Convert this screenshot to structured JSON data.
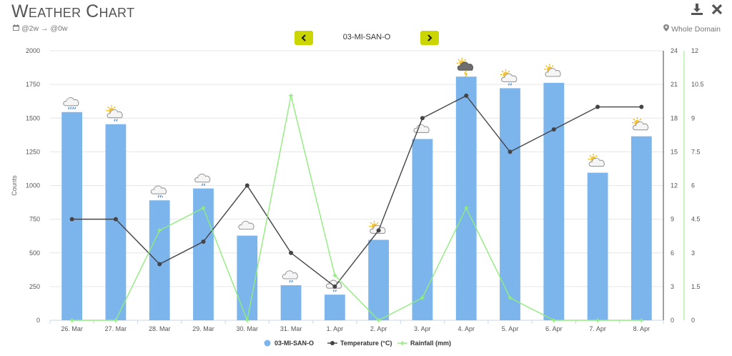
{
  "header": {
    "title_first_letter_1": "W",
    "title_rest_1": "EATHER",
    "title_first_letter_2": "C",
    "title_rest_2": "HART",
    "date_range": "@2w → @0w",
    "domain_label": "Whole Domain"
  },
  "nav": {
    "station": "03-MI-SAN-O",
    "prev_symbol": "‹",
    "next_symbol": "›"
  },
  "icons": {
    "download": "download-icon",
    "close": "close-icon",
    "calendar": "calendar-icon",
    "location": "map-marker-icon"
  },
  "colors": {
    "bars": "#7cb5ec",
    "temperature": "#434348",
    "rainfall": "#90ed7d",
    "nav_button": "#cbd600"
  },
  "chart_data": {
    "type": "bar",
    "categories": [
      "26. Mar",
      "27. Mar",
      "28. Mar",
      "29. Mar",
      "30. Mar",
      "31. Mar",
      "1. Apr",
      "2. Apr",
      "3. Apr",
      "4. Apr",
      "5. Apr",
      "6. Apr",
      "7. Apr",
      "8. Apr"
    ],
    "ylabel": "Counts",
    "ylim": [
      0,
      2000
    ],
    "yticks": [
      "0",
      "250",
      "500",
      "750",
      "1000",
      "1250",
      "1500",
      "1750",
      "2000"
    ],
    "y2lim": [
      0,
      24
    ],
    "y2ticks": [
      "0",
      "3",
      "6",
      "9",
      "12",
      "15",
      "18",
      "21",
      "24"
    ],
    "y3lim": [
      0,
      12
    ],
    "y3ticks": [
      "0",
      "1.5",
      "3",
      "4.5",
      "6",
      "7.5",
      "9",
      "10.5",
      "12"
    ],
    "grid": true,
    "legend_position": "bottom-center",
    "series": [
      {
        "name": "03-MI-SAN-O",
        "kind": "bar",
        "axis": "left",
        "values": [
          1545,
          1455,
          890,
          978,
          628,
          260,
          190,
          597,
          1345,
          1808,
          1722,
          1762,
          1095,
          1365
        ]
      },
      {
        "name": "Temperature (°C)",
        "kind": "line",
        "axis": "right1",
        "values": [
          9,
          9,
          5,
          7,
          12,
          6,
          3,
          8,
          18,
          20,
          15,
          17,
          19,
          19
        ]
      },
      {
        "name": "Rainfall (mm)",
        "kind": "line",
        "axis": "right2",
        "values": [
          0,
          0,
          4,
          5,
          0,
          10,
          2,
          0,
          1,
          5,
          1,
          0,
          0,
          0
        ]
      }
    ],
    "weather_icons": [
      "cloud-heavy-rain-icon",
      "sun-cloud-rain-icon",
      "cloud-sleet-icon",
      "cloud-rain-icon",
      "cloud-icon",
      "cloud-rain-icon",
      "cloud-rain-icon",
      "sun-cloud-icon",
      "cloud-icon",
      "sun-thunderstorm-icon",
      "sun-cloud-rain-icon",
      "sun-cloud-icon",
      "sun-cloud-icon",
      "sun-cloud-icon"
    ]
  }
}
